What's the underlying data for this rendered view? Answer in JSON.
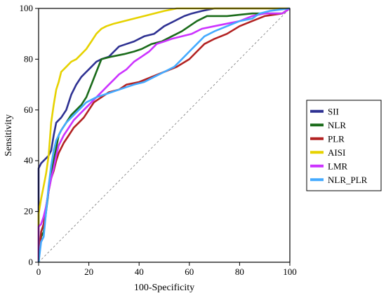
{
  "chart_data": {
    "type": "line",
    "xlabel": "100-Specificity",
    "ylabel": "Sensitivity",
    "xlim": [
      0,
      100
    ],
    "ylim": [
      0,
      100
    ],
    "x_ticks": [
      0,
      20,
      40,
      60,
      80,
      100
    ],
    "y_ticks": [
      0,
      20,
      40,
      60,
      80,
      100
    ],
    "grid": false,
    "legend_position": "right",
    "reference_line": {
      "from": [
        0,
        0
      ],
      "to": [
        100,
        100
      ],
      "style": "dashed"
    },
    "series": [
      {
        "name": "SII",
        "color": "#2e3192",
        "points": [
          [
            0,
            0
          ],
          [
            0,
            37
          ],
          [
            1,
            39
          ],
          [
            2,
            40
          ],
          [
            3,
            41
          ],
          [
            4,
            42
          ],
          [
            5,
            44
          ],
          [
            6,
            50
          ],
          [
            7,
            55
          ],
          [
            9,
            57
          ],
          [
            11,
            60
          ],
          [
            13,
            66
          ],
          [
            15,
            70
          ],
          [
            17,
            73
          ],
          [
            19,
            75
          ],
          [
            21,
            77
          ],
          [
            23,
            79
          ],
          [
            25,
            80
          ],
          [
            28,
            81
          ],
          [
            30,
            83
          ],
          [
            32,
            85
          ],
          [
            35,
            86
          ],
          [
            38,
            87
          ],
          [
            42,
            89
          ],
          [
            46,
            90
          ],
          [
            50,
            93
          ],
          [
            54,
            95
          ],
          [
            58,
            97
          ],
          [
            61,
            98
          ],
          [
            65,
            99
          ],
          [
            70,
            100
          ],
          [
            100,
            100
          ]
        ]
      },
      {
        "name": "NLR",
        "color": "#1a6b1a",
        "points": [
          [
            0,
            0
          ],
          [
            1,
            10
          ],
          [
            2,
            12
          ],
          [
            3,
            20
          ],
          [
            4,
            28
          ],
          [
            5,
            35
          ],
          [
            6,
            40
          ],
          [
            7,
            45
          ],
          [
            8,
            50
          ],
          [
            9,
            52
          ],
          [
            11,
            55
          ],
          [
            13,
            58
          ],
          [
            15,
            60
          ],
          [
            17,
            62
          ],
          [
            19,
            65
          ],
          [
            21,
            70
          ],
          [
            23,
            75
          ],
          [
            25,
            80
          ],
          [
            29,
            81
          ],
          [
            34,
            82
          ],
          [
            38,
            83
          ],
          [
            41,
            84
          ],
          [
            45,
            86
          ],
          [
            49,
            87
          ],
          [
            53,
            89
          ],
          [
            57,
            91
          ],
          [
            60,
            93
          ],
          [
            63,
            95
          ],
          [
            67,
            97
          ],
          [
            75,
            97
          ],
          [
            85,
            98
          ],
          [
            97,
            98
          ],
          [
            100,
            100
          ]
        ]
      },
      {
        "name": "PLR",
        "color": "#b22222",
        "points": [
          [
            0,
            0
          ],
          [
            1,
            12
          ],
          [
            2,
            15
          ],
          [
            3,
            22
          ],
          [
            4,
            28
          ],
          [
            5,
            33
          ],
          [
            6,
            36
          ],
          [
            7,
            40
          ],
          [
            8,
            43
          ],
          [
            10,
            47
          ],
          [
            12,
            50
          ],
          [
            14,
            53
          ],
          [
            16,
            55
          ],
          [
            18,
            57
          ],
          [
            20,
            60
          ],
          [
            22,
            63
          ],
          [
            25,
            65
          ],
          [
            28,
            67
          ],
          [
            32,
            68
          ],
          [
            35,
            70
          ],
          [
            40,
            71
          ],
          [
            45,
            73
          ],
          [
            50,
            75
          ],
          [
            55,
            77
          ],
          [
            60,
            80
          ],
          [
            63,
            83
          ],
          [
            66,
            86
          ],
          [
            70,
            88
          ],
          [
            75,
            90
          ],
          [
            80,
            93
          ],
          [
            85,
            95
          ],
          [
            90,
            97
          ],
          [
            97,
            98
          ],
          [
            100,
            100
          ]
        ]
      },
      {
        "name": "AISI",
        "color": "#e6d200",
        "points": [
          [
            0,
            0
          ],
          [
            0,
            19
          ],
          [
            1,
            25
          ],
          [
            2,
            30
          ],
          [
            3,
            35
          ],
          [
            4,
            42
          ],
          [
            5,
            55
          ],
          [
            6,
            62
          ],
          [
            7,
            68
          ],
          [
            8,
            71
          ],
          [
            9,
            75
          ],
          [
            11,
            77
          ],
          [
            13,
            79
          ],
          [
            15,
            80
          ],
          [
            17,
            82
          ],
          [
            19,
            84
          ],
          [
            21,
            87
          ],
          [
            23,
            90
          ],
          [
            25,
            92
          ],
          [
            27,
            93
          ],
          [
            30,
            94
          ],
          [
            34,
            95
          ],
          [
            38,
            96
          ],
          [
            42,
            97
          ],
          [
            46,
            98
          ],
          [
            50,
            99
          ],
          [
            55,
            100
          ],
          [
            100,
            100
          ]
        ]
      },
      {
        "name": "LMR",
        "color": "#cc33ff",
        "points": [
          [
            0,
            0
          ],
          [
            0,
            14
          ],
          [
            1,
            15
          ],
          [
            2,
            18
          ],
          [
            3,
            22
          ],
          [
            4,
            28
          ],
          [
            5,
            33
          ],
          [
            6,
            37
          ],
          [
            7,
            42
          ],
          [
            8,
            46
          ],
          [
            10,
            50
          ],
          [
            12,
            53
          ],
          [
            14,
            56
          ],
          [
            16,
            58
          ],
          [
            18,
            60
          ],
          [
            20,
            62
          ],
          [
            22,
            64
          ],
          [
            24,
            66
          ],
          [
            26,
            68
          ],
          [
            28,
            70
          ],
          [
            30,
            72
          ],
          [
            32,
            74
          ],
          [
            35,
            76
          ],
          [
            38,
            79
          ],
          [
            41,
            81
          ],
          [
            44,
            83
          ],
          [
            47,
            86
          ],
          [
            50,
            87
          ],
          [
            53,
            88
          ],
          [
            57,
            89
          ],
          [
            61,
            90
          ],
          [
            65,
            92
          ],
          [
            70,
            93
          ],
          [
            75,
            94
          ],
          [
            80,
            95
          ],
          [
            85,
            97
          ],
          [
            90,
            98
          ],
          [
            97,
            98
          ],
          [
            100,
            100
          ]
        ]
      },
      {
        "name": "NLR_PLR",
        "color": "#44aaff",
        "points": [
          [
            0,
            0
          ],
          [
            1,
            8
          ],
          [
            2,
            10
          ],
          [
            3,
            20
          ],
          [
            4,
            30
          ],
          [
            5,
            38
          ],
          [
            6,
            44
          ],
          [
            7,
            48
          ],
          [
            9,
            52
          ],
          [
            11,
            55
          ],
          [
            13,
            57
          ],
          [
            15,
            59
          ],
          [
            17,
            61
          ],
          [
            19,
            63
          ],
          [
            21,
            64
          ],
          [
            23,
            65
          ],
          [
            26,
            66
          ],
          [
            29,
            67
          ],
          [
            32,
            68
          ],
          [
            35,
            69
          ],
          [
            38,
            70
          ],
          [
            42,
            71
          ],
          [
            46,
            73
          ],
          [
            50,
            75
          ],
          [
            54,
            77
          ],
          [
            57,
            80
          ],
          [
            60,
            83
          ],
          [
            63,
            86
          ],
          [
            66,
            89
          ],
          [
            70,
            91
          ],
          [
            75,
            93
          ],
          [
            80,
            95
          ],
          [
            85,
            96
          ],
          [
            88,
            98
          ],
          [
            92,
            99
          ],
          [
            100,
            100
          ]
        ]
      }
    ]
  }
}
